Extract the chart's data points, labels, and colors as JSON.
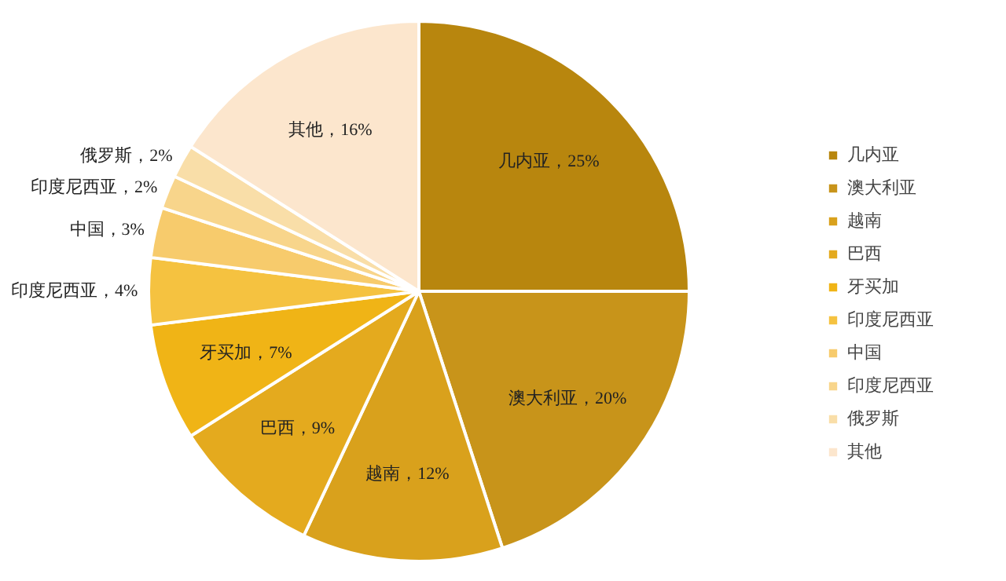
{
  "chart_data": {
    "type": "pie",
    "categories": [
      "几内亚",
      "澳大利亚",
      "越南",
      "巴西",
      "牙买加",
      "印度尼西亚",
      "中国",
      "印度尼西亚",
      "俄罗斯",
      "其他"
    ],
    "values": [
      25,
      20,
      12,
      9,
      7,
      4,
      3,
      2,
      2,
      16
    ],
    "colors": [
      "#b8860e",
      "#c8941a",
      "#d9a11c",
      "#e4aa1e",
      "#f0b416",
      "#f5c240",
      "#f7cb6c",
      "#f8d58b",
      "#f9dea8",
      "#fce6cd"
    ],
    "value_labels": [
      "几内亚，25%",
      "澳大利亚，20%",
      "越南，12%",
      "巴西，9%",
      "牙买加，7%",
      "印度尼西亚，4%",
      "中国，3%",
      "印度尼西亚，2%",
      "俄罗斯，2%",
      "其他，16%"
    ],
    "legend": "right"
  }
}
